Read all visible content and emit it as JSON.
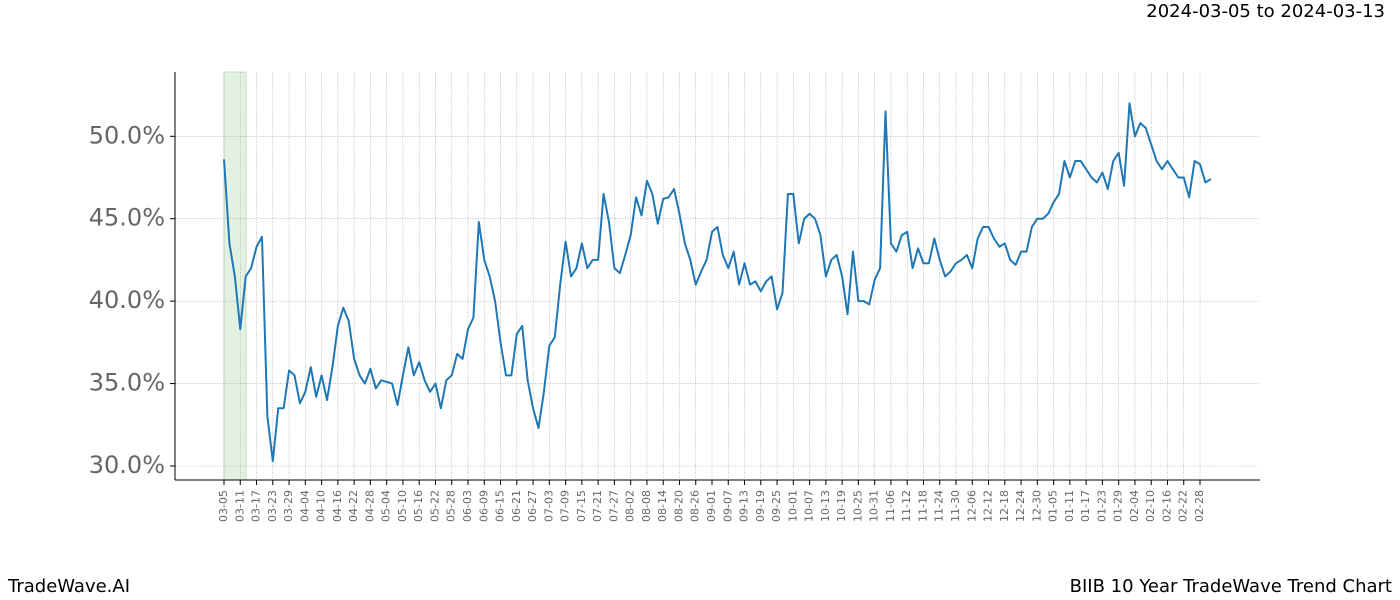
{
  "chart_data": {
    "type": "line",
    "title": "BIIB 10 Year TradeWave Trend Chart",
    "date_range": "2024-03-05 to 2024-03-13",
    "watermark": "TradeWave.AI",
    "categories": [
      "03-05",
      null,
      null,
      "03-11",
      null,
      null,
      "03-17",
      null,
      null,
      "03-23",
      null,
      null,
      "03-29",
      null,
      null,
      "04-04",
      null,
      null,
      "04-10",
      null,
      null,
      "04-16",
      null,
      null,
      "04-22",
      null,
      null,
      "04-28",
      null,
      null,
      "05-04",
      null,
      null,
      "05-10",
      null,
      null,
      "05-16",
      null,
      null,
      "05-22",
      null,
      null,
      "05-28",
      null,
      null,
      "06-03",
      null,
      null,
      "06-09",
      null,
      null,
      "06-15",
      null,
      null,
      "06-21",
      null,
      null,
      "06-27",
      null,
      null,
      "07-03",
      null,
      null,
      "07-09",
      null,
      null,
      "07-15",
      null,
      null,
      "07-21",
      null,
      null,
      "07-27",
      null,
      null,
      "08-02",
      null,
      null,
      "08-08",
      null,
      null,
      "08-14",
      null,
      null,
      "08-20",
      null,
      null,
      "08-26",
      null,
      null,
      "09-01",
      null,
      null,
      "09-07",
      null,
      null,
      "09-13",
      null,
      null,
      "09-19",
      null,
      null,
      "09-25",
      null,
      null,
      "10-01",
      null,
      null,
      "10-07",
      null,
      null,
      "10-13",
      null,
      null,
      "10-19",
      null,
      null,
      "10-25",
      null,
      null,
      "10-31",
      null,
      null,
      "11-06",
      null,
      null,
      "11-12",
      null,
      null,
      "11-18",
      null,
      null,
      "11-24",
      null,
      null,
      "11-30",
      null,
      null,
      "12-06",
      null,
      null,
      "12-12",
      null,
      null,
      "12-18",
      null,
      null,
      "12-24",
      null,
      null,
      "12-30",
      null,
      null,
      "01-05",
      null,
      null,
      "01-11",
      null,
      null,
      "01-17",
      null,
      null,
      "01-23",
      null,
      null,
      "01-29",
      null,
      null,
      "02-04",
      null,
      null,
      "02-10",
      null,
      null,
      "02-16",
      null,
      null,
      "02-22",
      null,
      null,
      "02-28",
      null,
      null
    ],
    "values": [
      48.6,
      43.5,
      41.5,
      38.3,
      41.5,
      42,
      43.3,
      43.9,
      33,
      30.3,
      33.5,
      33.5,
      35.8,
      35.5,
      33.8,
      34.5,
      36,
      34.2,
      35.5,
      34,
      36,
      38.5,
      39.6,
      38.8,
      36.5,
      35.5,
      35,
      35.9,
      34.7,
      35.2,
      35.1,
      35,
      33.7,
      35.5,
      37.2,
      35.5,
      36.3,
      35.2,
      34.5,
      35,
      33.5,
      35.2,
      35.5,
      36.8,
      36.5,
      38.3,
      39,
      44.8,
      42.5,
      41.5,
      40,
      37.5,
      35.5,
      35.5,
      38,
      38.5,
      35.2,
      33.5,
      32.3,
      34.5,
      37.3,
      37.8,
      41,
      43.6,
      41.5,
      42,
      43.5,
      42,
      42.5,
      42.5,
      46.5,
      44.8,
      42,
      41.7,
      42.8,
      44,
      46.3,
      45.2,
      47.3,
      46.5,
      44.7,
      46.2,
      46.3,
      46.8,
      45.3,
      43.5,
      42.5,
      41,
      41.8,
      42.5,
      44.2,
      44.5,
      42.8,
      42,
      43,
      41,
      42.3,
      41,
      41.2,
      40.6,
      41.2,
      41.5,
      39.5,
      40.5,
      46.5,
      46.5,
      43.5,
      45,
      45.3,
      45,
      44,
      41.5,
      42.5,
      42.8,
      41.5,
      39.2,
      43,
      40,
      40,
      39.8,
      41.3,
      42,
      51.5,
      43.5,
      43,
      44,
      44.2,
      42,
      43.2,
      42.3,
      42.3,
      43.8,
      42.5,
      41.5,
      41.8,
      42.3,
      42.5,
      42.8,
      42,
      43.8,
      44.5,
      44.5,
      43.8,
      43.3,
      43.5,
      42.5,
      42.2,
      43,
      43,
      44.5,
      45,
      45,
      45.3,
      46,
      46.5,
      48.5,
      47.5,
      48.5,
      48.5,
      48,
      47.5,
      47.2,
      47.8,
      46.8,
      48.5,
      49,
      47,
      52,
      50,
      50.8,
      50.5,
      49.5,
      48.5,
      48,
      48.5,
      48,
      47.5,
      47.5,
      46.3,
      48.5,
      48.3,
      47.2,
      47.4
    ],
    "color": "#1f77b4",
    "ylim": [
      29.15,
      53.9
    ],
    "yticks": [
      {
        "value": 30,
        "label": "30.0%"
      },
      {
        "value": 35,
        "label": "35.0%"
      },
      {
        "value": 40,
        "label": "40.0%"
      },
      {
        "value": 45,
        "label": "45.0%"
      },
      {
        "value": 50,
        "label": "50.0%"
      }
    ],
    "grid": true
  }
}
